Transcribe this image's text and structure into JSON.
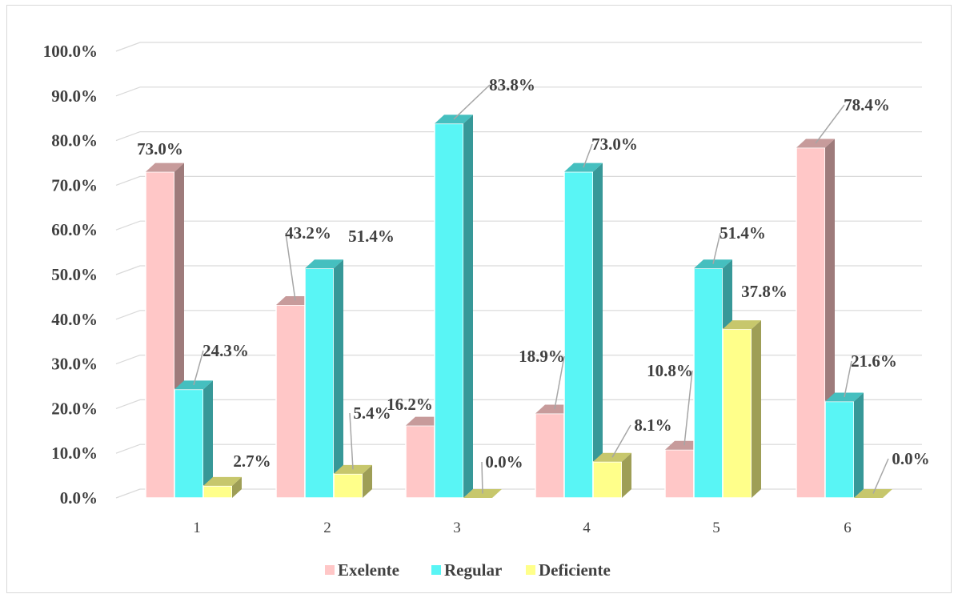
{
  "chart_data": {
    "type": "bar",
    "categories": [
      "1",
      "2",
      "3",
      "4",
      "5",
      "6"
    ],
    "series": [
      {
        "name": "Exelente",
        "values": [
          73.0,
          43.2,
          16.2,
          18.9,
          10.8,
          78.4
        ],
        "labels": [
          "73.0%",
          "43.2%",
          "16.2%",
          "18.9%",
          "10.8%",
          "78.4%"
        ],
        "color": "#ffc7c7"
      },
      {
        "name": "Regular",
        "values": [
          24.3,
          51.4,
          83.8,
          73.0,
          51.4,
          21.6
        ],
        "labels": [
          "24.3%",
          "51.4%",
          "83.8%",
          "73.0%",
          "51.4%",
          "21.6%"
        ],
        "color": "#59f5f5"
      },
      {
        "name": "Deficiente",
        "values": [
          2.7,
          5.4,
          0.0,
          8.1,
          37.8,
          0.0
        ],
        "labels": [
          "2.7%",
          "5.4%",
          "0.0%",
          "8.1%",
          "37.8%",
          "0.0%"
        ],
        "color": "#ffff8a"
      }
    ],
    "y_tick_labels": [
      "0.0%",
      "10.0%",
      "20.0%",
      "30.0%",
      "40.0%",
      "50.0%",
      "60.0%",
      "70.0%",
      "80.0%",
      "90.0%",
      "100.0%"
    ],
    "ylim": [
      0,
      100
    ],
    "grid": true,
    "legend": "bottom",
    "style": "3d-clustered-column"
  }
}
